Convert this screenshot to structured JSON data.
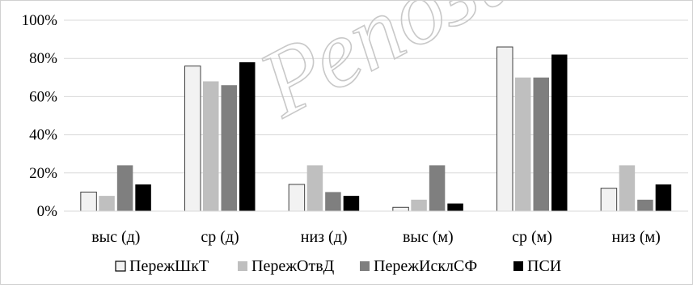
{
  "chart_data": {
    "type": "bar",
    "title": "",
    "xlabel": "",
    "ylabel": "",
    "ylim": [
      0,
      100
    ],
    "yticks": [
      "0%",
      "20%",
      "40%",
      "60%",
      "80%",
      "100%"
    ],
    "categories": [
      "выс (д)",
      "ср (д)",
      "низ (д)",
      "выс (м)",
      "ср (м)",
      "низ (м)"
    ],
    "series": [
      {
        "name": "ПережШкТ",
        "color": "#f2f2f2",
        "values": [
          10,
          76,
          14,
          2,
          86,
          12
        ]
      },
      {
        "name": "ПережОтвД",
        "color": "#bfbfbf",
        "values": [
          8,
          68,
          24,
          6,
          70,
          24
        ]
      },
      {
        "name": "ПережИсклСФ",
        "color": "#7f7f7f",
        "values": [
          24,
          66,
          10,
          24,
          70,
          6
        ]
      },
      {
        "name": "ПСИ",
        "color": "#000000",
        "values": [
          14,
          78,
          8,
          4,
          82,
          14
        ]
      }
    ],
    "grid": true,
    "legend": "bottom"
  },
  "watermark": "Репозит"
}
